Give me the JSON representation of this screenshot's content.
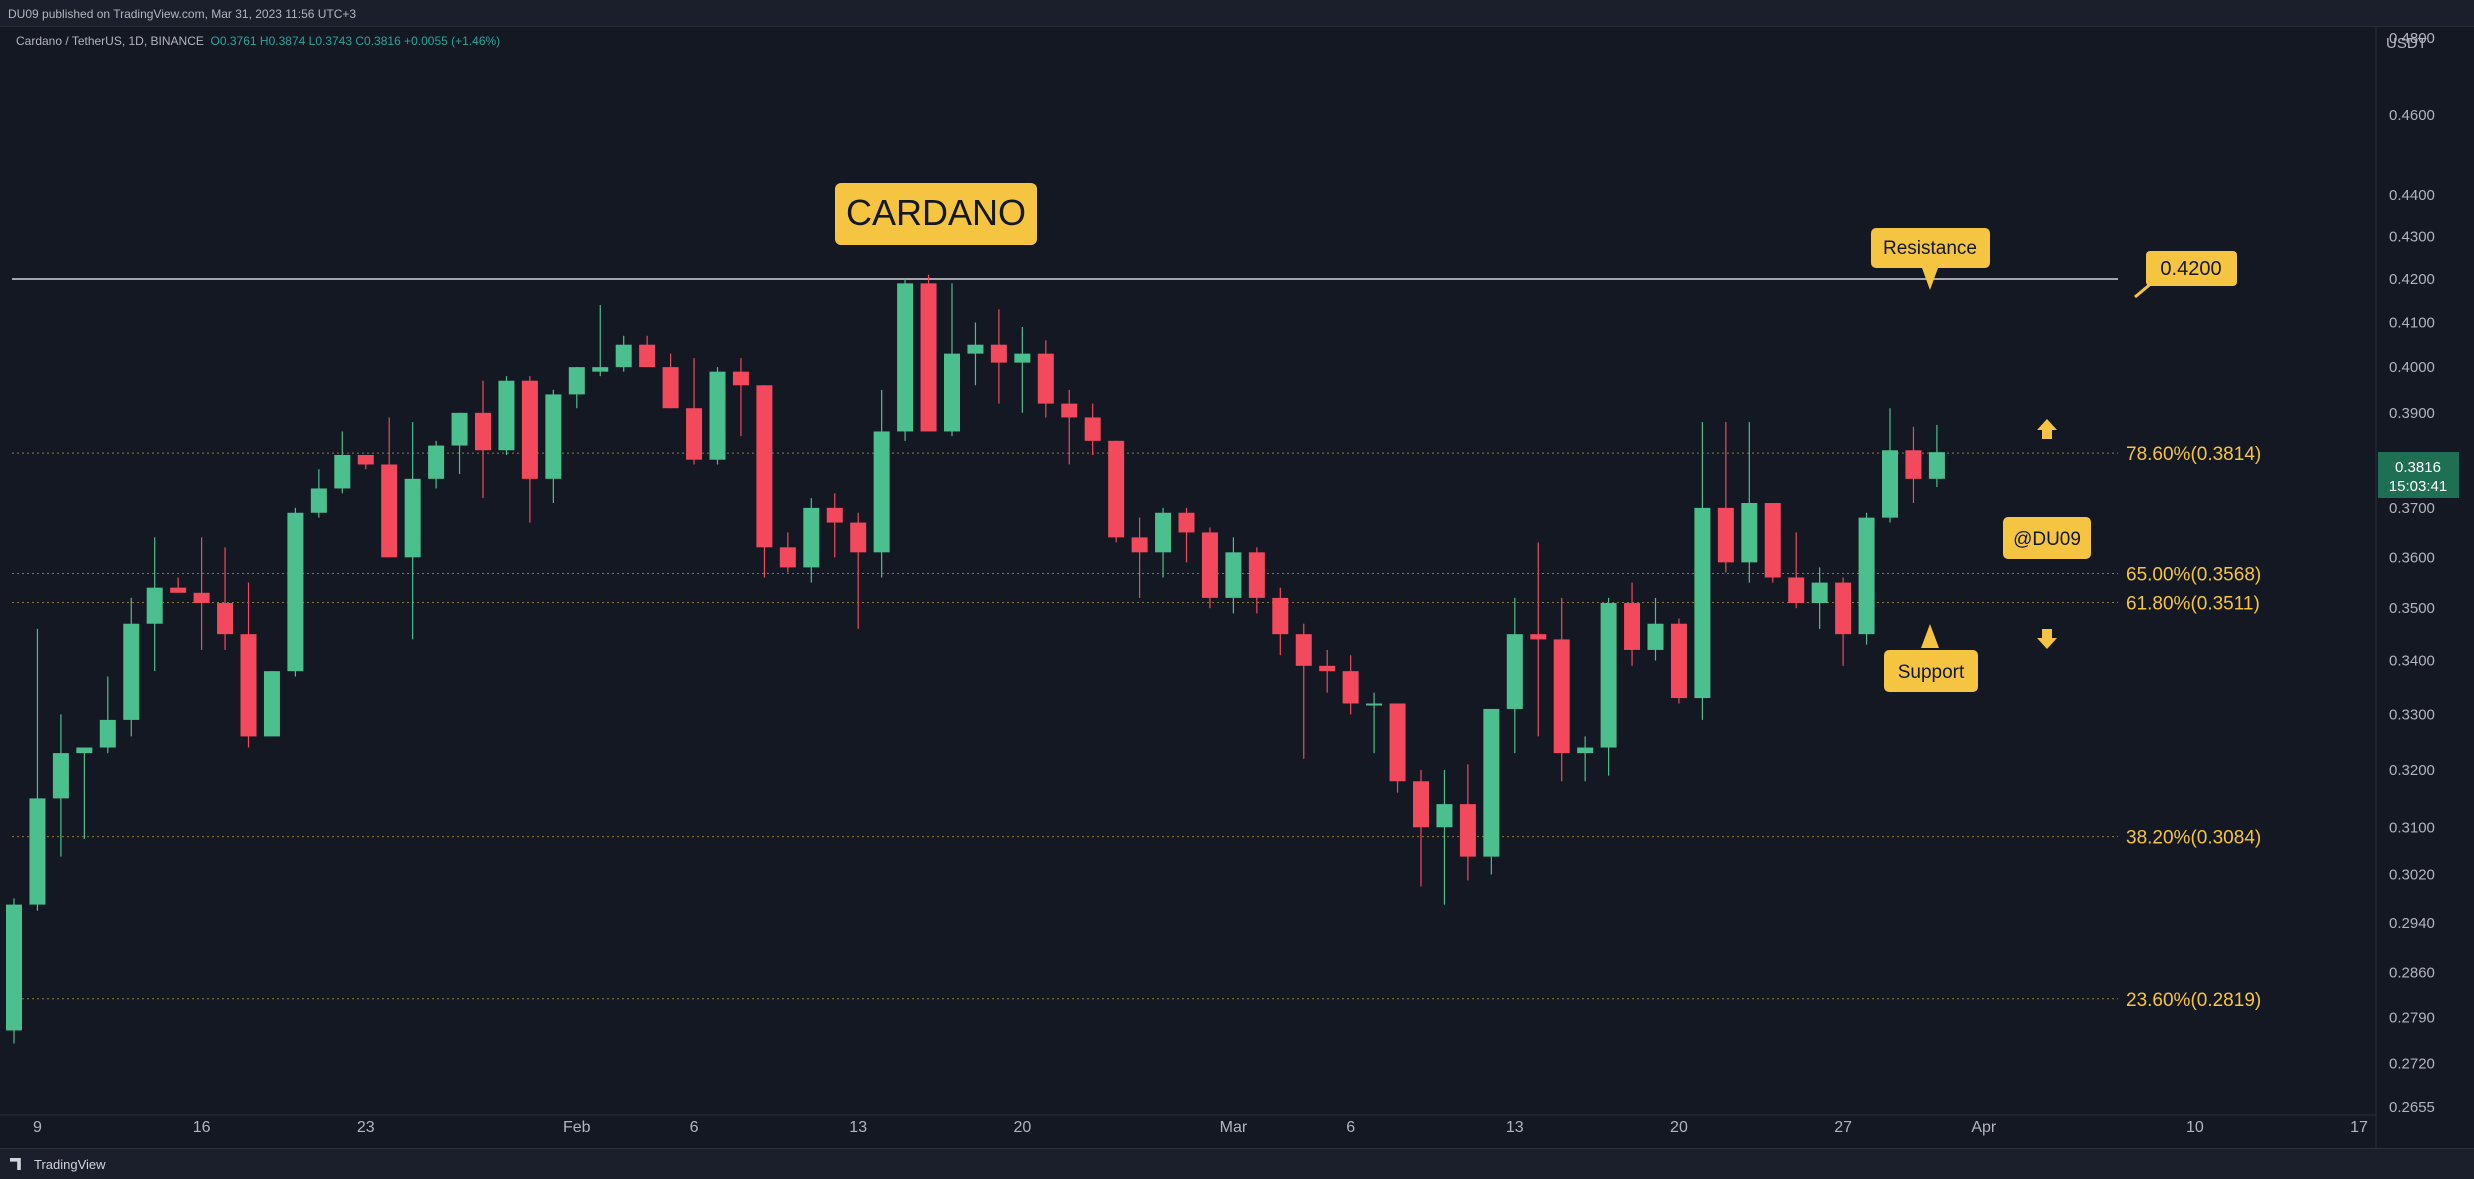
{
  "header": {
    "published": "DU09 published on TradingView.com, Mar 31, 2023 11:56 UTC+3"
  },
  "symbol": {
    "name": "Cardano / TetherUS, 1D, BINANCE",
    "open": "O0.3761",
    "high": "H0.3874",
    "low": "L0.3743",
    "close": "C0.3816",
    "change": "+0.0055 (+1.46%)"
  },
  "price_axis": {
    "currency": "USDT",
    "current_price": "0.3816",
    "countdown": "15:03:41"
  },
  "annotations": {
    "title": "CARDANO",
    "resistance": "Resistance",
    "support": "Support",
    "resistance_price": "0.4200",
    "author": "@DU09"
  },
  "footer": {
    "logo": "TradingView"
  },
  "colors": {
    "up": "#4bbf8e",
    "down": "#f2495c",
    "accent": "#f5c542",
    "background": "#141823"
  },
  "chart_data": {
    "type": "candlestick",
    "title": "CARDANO",
    "y_scale": "log",
    "ylim": [
      0.2655,
      0.48
    ],
    "x_tick_labels": [
      "9",
      "16",
      "23",
      "Feb",
      "6",
      "13",
      "20",
      "Mar",
      "6",
      "13",
      "20",
      "27",
      "Apr",
      "10",
      "17"
    ],
    "y_tick_labels": [
      "0.4800",
      "0.4600",
      "0.4400",
      "0.4300",
      "0.4200",
      "0.4100",
      "0.4000",
      "0.3900",
      "0.3700",
      "0.3600",
      "0.3500",
      "0.3400",
      "0.3300",
      "0.3200",
      "0.3100",
      "0.3020",
      "0.2940",
      "0.2860",
      "0.2790",
      "0.2720",
      "0.2655"
    ],
    "resistance_level": 0.42,
    "fib_levels": [
      {
        "label": "78.60%(0.3814)",
        "value": 0.3814
      },
      {
        "label": "65.00%(0.3568)",
        "value": 0.3568
      },
      {
        "label": "61.80%(0.3511)",
        "value": 0.3511
      },
      {
        "label": "38.20%(0.3084)",
        "value": 0.3084
      },
      {
        "label": "23.60%(0.2819)",
        "value": 0.2819
      }
    ],
    "dates": [
      "Jan 8",
      "Jan 9",
      "Jan 10",
      "Jan 11",
      "Jan 12",
      "Jan 13",
      "Jan 14",
      "Jan 15",
      "Jan 16",
      "Jan 17",
      "Jan 18",
      "Jan 19",
      "Jan 20",
      "Jan 21",
      "Jan 22",
      "Jan 23",
      "Jan 24",
      "Jan 25",
      "Jan 26",
      "Jan 27",
      "Jan 28",
      "Jan 29",
      "Jan 30",
      "Jan 31",
      "Feb 1",
      "Feb 2",
      "Feb 3",
      "Feb 4",
      "Feb 5",
      "Feb 6",
      "Feb 7",
      "Feb 8",
      "Feb 9",
      "Feb 10",
      "Feb 11",
      "Feb 12",
      "Feb 13",
      "Feb 14",
      "Feb 15",
      "Feb 16",
      "Feb 17",
      "Feb 18",
      "Feb 19",
      "Feb 20",
      "Feb 21",
      "Feb 22",
      "Feb 23",
      "Feb 24",
      "Feb 25",
      "Feb 26",
      "Feb 27",
      "Feb 28",
      "Mar 1",
      "Mar 2",
      "Mar 3",
      "Mar 4",
      "Mar 5",
      "Mar 6",
      "Mar 7",
      "Mar 8",
      "Mar 9",
      "Mar 10",
      "Mar 11",
      "Mar 12",
      "Mar 13",
      "Mar 14",
      "Mar 15",
      "Mar 16",
      "Mar 17",
      "Mar 18",
      "Mar 19",
      "Mar 20",
      "Mar 21",
      "Mar 22",
      "Mar 23",
      "Mar 24",
      "Mar 25",
      "Mar 26",
      "Mar 27",
      "Mar 28",
      "Mar 29",
      "Mar 30",
      "Mar 31"
    ],
    "ohlc": [
      [
        0.277,
        0.298,
        0.275,
        0.297
      ],
      [
        0.297,
        0.346,
        0.296,
        0.315
      ],
      [
        0.315,
        0.33,
        0.305,
        0.323
      ],
      [
        0.323,
        0.324,
        0.308,
        0.324
      ],
      [
        0.324,
        0.337,
        0.323,
        0.329
      ],
      [
        0.329,
        0.352,
        0.326,
        0.347
      ],
      [
        0.347,
        0.364,
        0.338,
        0.354
      ],
      [
        0.354,
        0.356,
        0.353,
        0.353
      ],
      [
        0.353,
        0.364,
        0.342,
        0.351
      ],
      [
        0.351,
        0.362,
        0.342,
        0.345
      ],
      [
        0.345,
        0.355,
        0.324,
        0.326
      ],
      [
        0.326,
        0.338,
        0.326,
        0.338
      ],
      [
        0.338,
        0.37,
        0.337,
        0.369
      ],
      [
        0.369,
        0.378,
        0.368,
        0.374
      ],
      [
        0.374,
        0.386,
        0.373,
        0.381
      ],
      [
        0.381,
        0.381,
        0.378,
        0.379
      ],
      [
        0.379,
        0.389,
        0.36,
        0.36
      ],
      [
        0.36,
        0.388,
        0.344,
        0.376
      ],
      [
        0.376,
        0.384,
        0.374,
        0.383
      ],
      [
        0.383,
        0.39,
        0.377,
        0.39
      ],
      [
        0.39,
        0.397,
        0.372,
        0.382
      ],
      [
        0.382,
        0.398,
        0.381,
        0.397
      ],
      [
        0.397,
        0.398,
        0.367,
        0.376
      ],
      [
        0.376,
        0.395,
        0.371,
        0.394
      ],
      [
        0.394,
        0.4,
        0.391,
        0.4
      ],
      [
        0.399,
        0.414,
        0.398,
        0.4
      ],
      [
        0.4,
        0.407,
        0.399,
        0.405
      ],
      [
        0.405,
        0.407,
        0.4,
        0.4
      ],
      [
        0.4,
        0.403,
        0.391,
        0.391
      ],
      [
        0.391,
        0.402,
        0.379,
        0.38
      ],
      [
        0.38,
        0.4,
        0.379,
        0.399
      ],
      [
        0.399,
        0.402,
        0.385,
        0.396
      ],
      [
        0.396,
        0.396,
        0.356,
        0.362
      ],
      [
        0.362,
        0.365,
        0.357,
        0.358
      ],
      [
        0.358,
        0.372,
        0.355,
        0.37
      ],
      [
        0.37,
        0.373,
        0.36,
        0.367
      ],
      [
        0.367,
        0.369,
        0.346,
        0.361
      ],
      [
        0.361,
        0.395,
        0.356,
        0.386
      ],
      [
        0.386,
        0.42,
        0.384,
        0.419
      ],
      [
        0.419,
        0.421,
        0.386,
        0.386
      ],
      [
        0.386,
        0.419,
        0.385,
        0.403
      ],
      [
        0.403,
        0.41,
        0.396,
        0.405
      ],
      [
        0.405,
        0.413,
        0.392,
        0.401
      ],
      [
        0.401,
        0.409,
        0.39,
        0.403
      ],
      [
        0.403,
        0.406,
        0.389,
        0.392
      ],
      [
        0.392,
        0.395,
        0.379,
        0.389
      ],
      [
        0.389,
        0.392,
        0.381,
        0.384
      ],
      [
        0.384,
        0.384,
        0.363,
        0.364
      ],
      [
        0.364,
        0.368,
        0.352,
        0.361
      ],
      [
        0.361,
        0.37,
        0.356,
        0.369
      ],
      [
        0.369,
        0.37,
        0.359,
        0.365
      ],
      [
        0.365,
        0.366,
        0.35,
        0.352
      ],
      [
        0.352,
        0.364,
        0.349,
        0.361
      ],
      [
        0.361,
        0.362,
        0.349,
        0.352
      ],
      [
        0.352,
        0.354,
        0.341,
        0.345
      ],
      [
        0.345,
        0.347,
        0.322,
        0.339
      ],
      [
        0.339,
        0.342,
        0.334,
        0.338
      ],
      [
        0.338,
        0.341,
        0.33,
        0.332
      ],
      [
        0.332,
        0.334,
        0.323,
        0.332
      ],
      [
        0.332,
        0.332,
        0.316,
        0.318
      ],
      [
        0.318,
        0.32,
        0.3,
        0.31
      ],
      [
        0.31,
        0.32,
        0.297,
        0.314
      ],
      [
        0.314,
        0.321,
        0.301,
        0.305
      ],
      [
        0.305,
        0.331,
        0.302,
        0.331
      ],
      [
        0.331,
        0.352,
        0.323,
        0.345
      ],
      [
        0.345,
        0.363,
        0.326,
        0.344
      ],
      [
        0.344,
        0.352,
        0.318,
        0.323
      ],
      [
        0.323,
        0.326,
        0.318,
        0.324
      ],
      [
        0.324,
        0.352,
        0.319,
        0.351
      ],
      [
        0.351,
        0.355,
        0.339,
        0.342
      ],
      [
        0.342,
        0.352,
        0.34,
        0.347
      ],
      [
        0.347,
        0.348,
        0.332,
        0.333
      ],
      [
        0.333,
        0.388,
        0.329,
        0.37
      ],
      [
        0.37,
        0.388,
        0.357,
        0.359
      ],
      [
        0.359,
        0.388,
        0.355,
        0.371
      ],
      [
        0.371,
        0.371,
        0.355,
        0.356
      ],
      [
        0.356,
        0.365,
        0.35,
        0.351
      ],
      [
        0.351,
        0.358,
        0.346,
        0.355
      ],
      [
        0.355,
        0.356,
        0.339,
        0.345
      ],
      [
        0.345,
        0.369,
        0.343,
        0.368
      ],
      [
        0.368,
        0.391,
        0.367,
        0.382
      ],
      [
        0.382,
        0.387,
        0.371,
        0.376
      ],
      [
        0.376,
        0.3874,
        0.3743,
        0.3816
      ]
    ]
  }
}
